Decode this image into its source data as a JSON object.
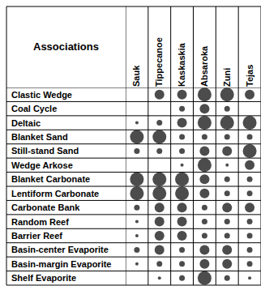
{
  "chart_data": {
    "type": "bubble",
    "header": "Associations",
    "x": [
      "Sauk",
      "Tippecanoe",
      "Kaskaskia",
      "Absaroka",
      "Zuni",
      "Tejas"
    ],
    "y": [
      "Clastic Wedge",
      "Coal Cycle",
      "Deltaic",
      "Blanket Sand",
      "Still-stand Sand",
      "Wedge Arkose",
      "Blanket Carbonate",
      "Lentiform Carbonate",
      "Carbonate Bank",
      "Random Reef",
      "Barrier Reef",
      "Basin-center Evaporite",
      "Basin-margin Evaporite",
      "Shelf Evaporite"
    ],
    "sizes": [
      [
        0,
        3,
        3,
        4,
        4,
        3
      ],
      [
        0,
        0,
        2,
        3,
        2,
        0
      ],
      [
        1,
        2,
        3,
        4,
        4,
        4
      ],
      [
        4,
        4,
        2,
        2,
        2,
        2
      ],
      [
        2,
        2,
        2,
        3,
        3,
        4
      ],
      [
        0,
        0,
        1,
        4,
        1,
        3
      ],
      [
        4,
        4,
        4,
        3,
        2,
        2
      ],
      [
        4,
        4,
        4,
        3,
        2,
        2
      ],
      [
        2,
        3,
        3,
        2,
        3,
        3
      ],
      [
        1,
        3,
        3,
        2,
        2,
        2
      ],
      [
        1,
        3,
        3,
        2,
        2,
        2
      ],
      [
        2,
        3,
        2,
        3,
        3,
        2
      ],
      [
        1,
        2,
        2,
        3,
        3,
        2
      ],
      [
        0,
        1,
        2,
        4,
        2,
        1
      ]
    ],
    "color": "#000000",
    "grid": true
  }
}
